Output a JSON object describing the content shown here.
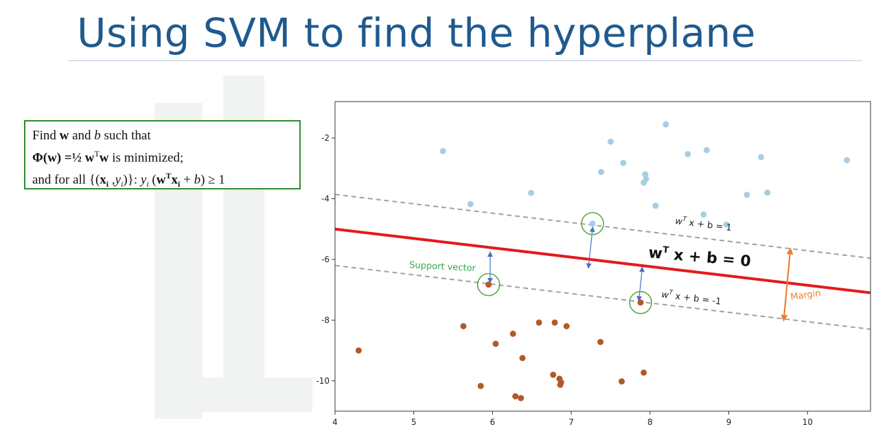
{
  "slide": {
    "title": "Using SVM to find the hyperplane"
  },
  "formula": {
    "line1": {
      "prefix": "Find ",
      "w": "w",
      "and": " and ",
      "b": "b",
      "suffix": " such that"
    },
    "line2": {
      "phi": "Φ(w)",
      "eq": " =½ ",
      "w": "w",
      "t": "T",
      "w2": "w",
      "rest": "  is minimized;"
    },
    "line3": {
      "prefix": "and for all ",
      "set_open": "{(",
      "x": "x",
      "i": "i",
      "comma": " ,",
      "y": "y",
      "i2": "i",
      "set_close": ")}:  ",
      "yi": "y",
      "yi_sub": "i",
      "paren": " (",
      "w": "w",
      "T": "T",
      "x2": "x",
      "i3": "i",
      "plus": " + ",
      "b": "b",
      "tail": ") ≥ 1"
    }
  },
  "chart_data": {
    "type": "scatter",
    "xlim": [
      4,
      10.8
    ],
    "ylim": [
      -11,
      -0.8
    ],
    "x_ticks": [
      "4",
      "5",
      "6",
      "7",
      "8",
      "9",
      "10"
    ],
    "y_ticks": [
      "-2",
      "-4",
      "-6",
      "-8",
      "-10"
    ],
    "x_tick_values": [
      4,
      5,
      6,
      7,
      8,
      9,
      10
    ],
    "y_tick_values": [
      -2,
      -4,
      -6,
      -8,
      -10
    ],
    "grid": false,
    "series": [
      {
        "color": "#a6cee3",
        "points": [
          [
            5.37,
            -2.43
          ],
          [
            5.72,
            -4.18
          ],
          [
            6.49,
            -3.81
          ],
          [
            7.27,
            -4.82
          ],
          [
            7.38,
            -3.12
          ],
          [
            7.5,
            -2.12
          ],
          [
            7.66,
            -2.82
          ],
          [
            7.92,
            -3.47
          ],
          [
            7.94,
            -3.2
          ],
          [
            7.95,
            -3.35
          ],
          [
            8.07,
            -4.23
          ],
          [
            8.2,
            -1.55
          ],
          [
            8.48,
            -2.53
          ],
          [
            8.68,
            -4.52
          ],
          [
            8.72,
            -2.4
          ],
          [
            8.97,
            -4.85
          ],
          [
            9.23,
            -3.87
          ],
          [
            9.41,
            -2.63
          ],
          [
            9.49,
            -3.8
          ],
          [
            10.5,
            -2.73
          ]
        ]
      },
      {
        "color": "#b1592b",
        "points": [
          [
            4.3,
            -9.0
          ],
          [
            5.63,
            -8.2
          ],
          [
            5.85,
            -10.17
          ],
          [
            5.95,
            -6.83
          ],
          [
            6.04,
            -8.78
          ],
          [
            6.26,
            -8.45
          ],
          [
            6.29,
            -10.51
          ],
          [
            6.36,
            -10.57
          ],
          [
            6.38,
            -9.25
          ],
          [
            6.59,
            -8.08
          ],
          [
            6.77,
            -9.8
          ],
          [
            6.79,
            -8.08
          ],
          [
            6.85,
            -9.93
          ],
          [
            6.86,
            -10.13
          ],
          [
            6.87,
            -10.05
          ],
          [
            6.94,
            -8.2
          ],
          [
            7.37,
            -8.72
          ],
          [
            7.64,
            -10.02
          ],
          [
            7.88,
            -7.42
          ],
          [
            7.92,
            -9.73
          ]
        ]
      }
    ],
    "lines": [
      {
        "role": "decision-boundary",
        "color": "#e31a1c",
        "from": [
          4,
          -5.0
        ],
        "to": [
          10.8,
          -7.1
        ]
      },
      {
        "role": "upper-margin",
        "color": "#a0a0a0",
        "from": [
          4,
          -3.86
        ],
        "to": [
          10.8,
          -5.96
        ]
      },
      {
        "role": "lower-margin",
        "color": "#a0a0a0",
        "from": [
          4,
          -6.2
        ],
        "to": [
          10.8,
          -8.3
        ]
      }
    ],
    "support_vectors": [
      {
        "x": 7.27,
        "y": -4.82
      },
      {
        "x": 5.95,
        "y": -6.83
      },
      {
        "x": 7.88,
        "y": -7.42
      }
    ],
    "arrows": [
      {
        "color": "#4472c4",
        "from": [
          7.27,
          -5.0
        ],
        "to": [
          7.22,
          -6.22
        ]
      },
      {
        "color": "#4472c4",
        "from": [
          5.97,
          -6.7
        ],
        "to": [
          5.97,
          -5.82
        ]
      },
      {
        "color": "#4472c4",
        "from": [
          7.86,
          -7.3
        ],
        "to": [
          7.9,
          -6.32
        ]
      },
      {
        "color": "#ed7d31",
        "from": [
          9.78,
          -5.72
        ],
        "to": [
          9.7,
          -7.94
        ]
      }
    ],
    "annotations": {
      "upper_margin_eq": {
        "w": "w",
        "T": "T",
        "rest": " x + b = 1"
      },
      "boundary_eq": {
        "w": "w",
        "T": "T",
        "rest": " x + b = 0"
      },
      "lower_margin_eq": {
        "w": "w",
        "T": "T",
        "rest": " x + b = -1"
      },
      "support_vector_label": "Support vector",
      "margin_label": "Margin"
    },
    "colors": {
      "support_vector_label": "#2eaa4a",
      "support_circle": "#5aa84a",
      "margin_label": "#ed7d31"
    }
  }
}
